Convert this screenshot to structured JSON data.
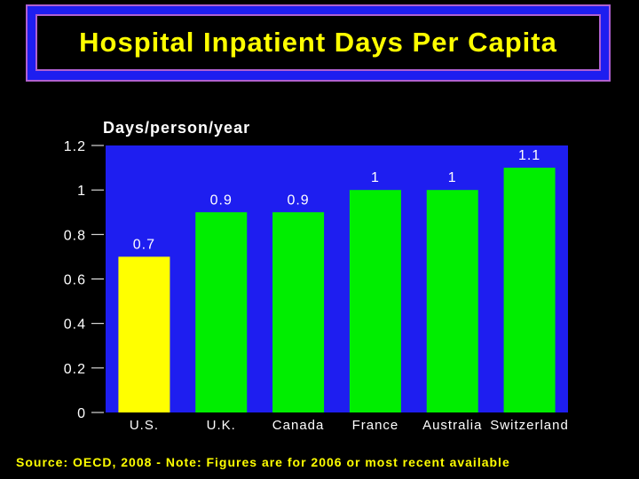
{
  "title": "Hospital Inpatient Days Per Capita",
  "source_note": "Source: OECD, 2008 - Note: Figures are for 2006 or most recent available",
  "colors": {
    "plot_bg": "#1e1ef0",
    "bar_highlight": "#ffff00",
    "bar_default": "#00ee00",
    "text": "#ffffff",
    "title_text": "#ffff00"
  },
  "chart_data": {
    "type": "bar",
    "title": "Hospital Inpatient Days Per Capita",
    "ylabel": "Days/person/year",
    "xlabel": "",
    "categories": [
      "U.S.",
      "U.K.",
      "Canada",
      "France",
      "Australia",
      "Switzerland"
    ],
    "values": [
      0.7,
      0.9,
      0.9,
      1,
      1,
      1.1
    ],
    "value_labels": [
      "0.7",
      "0.9",
      "0.9",
      "1",
      "1",
      "1.1"
    ],
    "highlight": [
      "U.S."
    ],
    "ylim": [
      0,
      1.2
    ],
    "yticks": [
      0,
      0.2,
      0.4,
      0.6,
      0.8,
      1,
      1.2
    ],
    "ytick_labels": [
      "0",
      "0.2",
      "0.4",
      "0.6",
      "0.8",
      "1",
      "1.2"
    ],
    "grid": false,
    "legend": "none"
  }
}
